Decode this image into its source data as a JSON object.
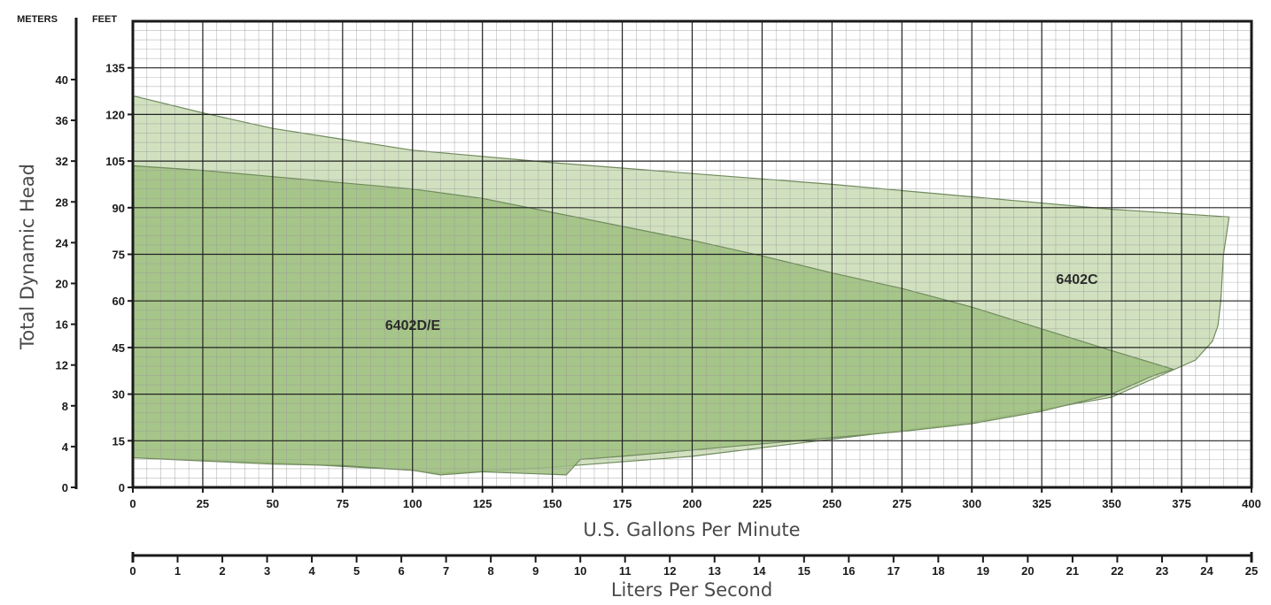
{
  "chart_data": {
    "type": "area",
    "xlabel": "U.S. Gallons Per Minute",
    "ylabel": "Total Dynamic Head",
    "secondary_xlabel": "Liters Per Second",
    "left_unit": "METERS",
    "right_unit": "FEET",
    "xlim": [
      0,
      400
    ],
    "ylim_feet": [
      0,
      150
    ],
    "ylim_meters": [
      0,
      45.72
    ],
    "x_ticks": [
      "0",
      "25",
      "50",
      "75",
      "100",
      "125",
      "150",
      "175",
      "200",
      "225",
      "250",
      "275",
      "300",
      "325",
      "350",
      "375",
      "400"
    ],
    "feet_ticks": [
      "0",
      "15",
      "30",
      "45",
      "60",
      "75",
      "90",
      "105",
      "120",
      "135"
    ],
    "meter_ticks": [
      "0",
      "4",
      "8",
      "12",
      "16",
      "20",
      "24",
      "28",
      "32",
      "36",
      "40"
    ],
    "lps_ticks": [
      "0",
      "1",
      "2",
      "3",
      "4",
      "5",
      "6",
      "7",
      "8",
      "9",
      "10",
      "11",
      "12",
      "13",
      "14",
      "15",
      "16",
      "17",
      "18",
      "19",
      "20",
      "21",
      "22",
      "23",
      "24",
      "25"
    ],
    "grid": true,
    "regions": [
      {
        "name": "6402C",
        "color": "#c9dcb4",
        "upper": [
          [
            0,
            126
          ],
          [
            25,
            120.5
          ],
          [
            50,
            115.5
          ],
          [
            100,
            108.5
          ],
          [
            150,
            104.5
          ],
          [
            200,
            101
          ],
          [
            250,
            97.5
          ],
          [
            300,
            93.5
          ],
          [
            350,
            89.5
          ],
          [
            392,
            87
          ]
        ],
        "lower": [
          [
            392,
            87
          ],
          [
            390,
            75
          ],
          [
            389,
            60
          ],
          [
            388,
            52
          ],
          [
            386,
            47
          ],
          [
            380,
            41
          ],
          [
            370,
            37
          ],
          [
            350,
            29
          ],
          [
            300,
            21
          ],
          [
            250,
            15.5
          ],
          [
            200,
            10
          ],
          [
            150,
            6.5
          ],
          [
            120,
            5
          ],
          [
            110,
            4.5
          ],
          [
            100,
            5.5
          ],
          [
            50,
            8
          ],
          [
            0,
            9.5
          ]
        ]
      },
      {
        "name": "6402D/E",
        "color": "#9fc07f",
        "upper": [
          [
            0,
            103.5
          ],
          [
            25,
            102
          ],
          [
            50,
            100
          ],
          [
            100,
            96
          ],
          [
            125,
            93
          ],
          [
            150,
            88.5
          ],
          [
            175,
            84
          ],
          [
            200,
            79.5
          ],
          [
            225,
            74.5
          ],
          [
            250,
            69
          ],
          [
            275,
            64
          ],
          [
            300,
            58
          ],
          [
            325,
            51
          ],
          [
            350,
            44
          ],
          [
            372,
            38
          ]
        ],
        "lower": [
          [
            372,
            38
          ],
          [
            365,
            36
          ],
          [
            350,
            30
          ],
          [
            325,
            24.5
          ],
          [
            300,
            20.5
          ],
          [
            275,
            18
          ],
          [
            250,
            16
          ],
          [
            225,
            14
          ],
          [
            200,
            12
          ],
          [
            175,
            10
          ],
          [
            160,
            9
          ],
          [
            155,
            4
          ],
          [
            140,
            4.5
          ],
          [
            125,
            5
          ],
          [
            110,
            4
          ],
          [
            100,
            5.5
          ],
          [
            75,
            7
          ],
          [
            50,
            7.5
          ],
          [
            25,
            8.5
          ],
          [
            0,
            9.5
          ]
        ]
      }
    ]
  }
}
